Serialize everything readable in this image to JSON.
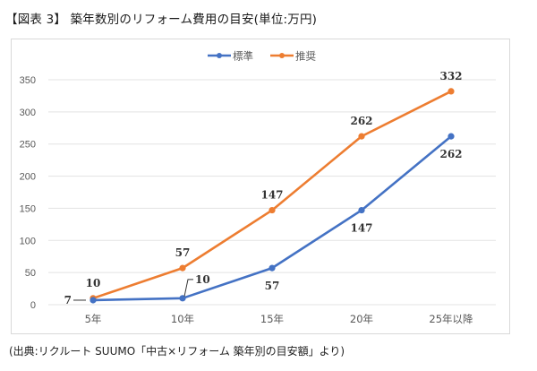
{
  "title": "【図表 3】 築年数別のリフォーム費用の目安(単位:万円)",
  "source": "(出典:リクルート SUUMO「中古×リフォーム 築年別の目安額」より)",
  "chart_data": {
    "type": "line",
    "title": "【図表 3】 築年数別のリフォーム費用の目安(単位:万円)",
    "xlabel": "",
    "ylabel": "",
    "categories": [
      "5年",
      "10年",
      "15年",
      "20年",
      "25年以降"
    ],
    "series": [
      {
        "name": "標準",
        "color": "#4472c4",
        "values": [
          7,
          10,
          57,
          147,
          262
        ],
        "label_pos": [
          "left",
          "callout-up-right",
          "below",
          "below",
          "below"
        ]
      },
      {
        "name": "推奨",
        "color": "#ed7d31",
        "values": [
          10,
          57,
          147,
          262,
          332
        ],
        "label_pos": [
          "above",
          "above",
          "above",
          "above",
          "above"
        ]
      }
    ],
    "ylim": [
      0,
      350
    ],
    "yticks": [
      0,
      50,
      100,
      150,
      200,
      250,
      300,
      350
    ],
    "grid": true,
    "legend": "top-center"
  }
}
